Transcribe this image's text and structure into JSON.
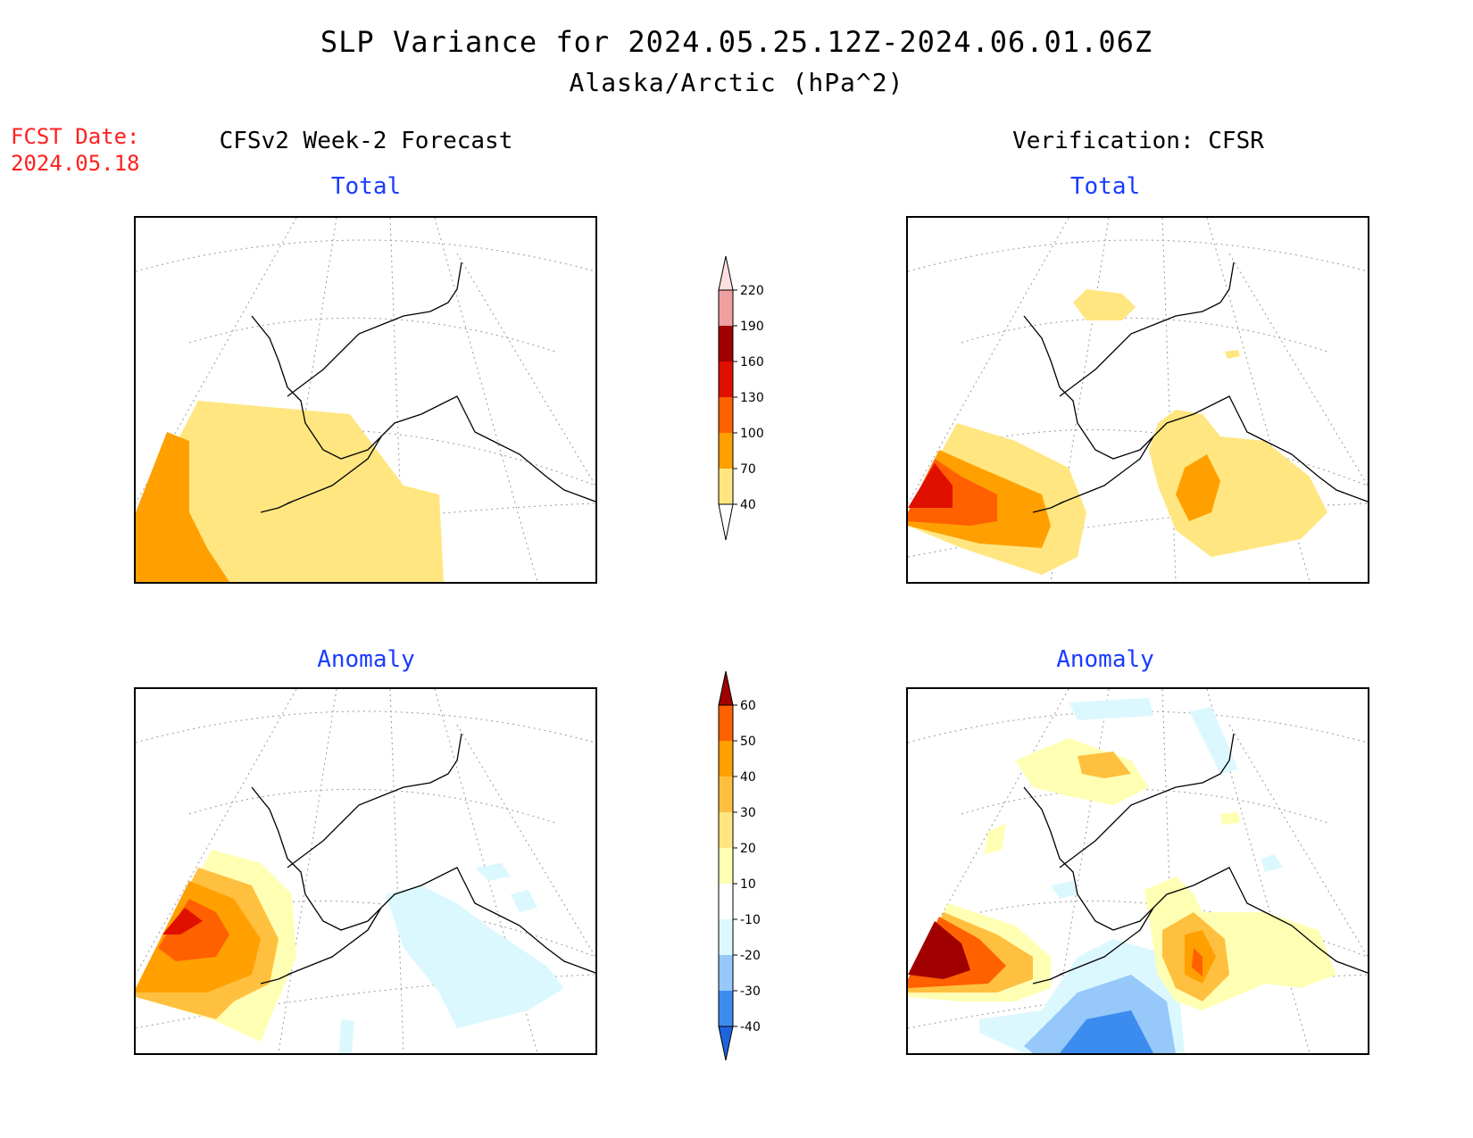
{
  "header": {
    "title": "SLP Variance for 2024.05.25.12Z-2024.06.01.06Z",
    "subtitle": "Alaska/Arctic (hPa^2)",
    "fcst_label": "FCST Date:",
    "fcst_date": "2024.05.18"
  },
  "columns": {
    "left": "CFSv2 Week-2 Forecast",
    "right": "Verification: CFSR"
  },
  "panels": {
    "forecast_total": {
      "title": "Total"
    },
    "verification_total": {
      "title": "Total"
    },
    "forecast_anomaly": {
      "title": "Anomaly"
    },
    "verification_anomaly": {
      "title": "Anomaly"
    }
  },
  "colorbars": {
    "total": {
      "labels": [
        "40",
        "70",
        "100",
        "130",
        "160",
        "190",
        "220"
      ],
      "colors": [
        "#ffe680",
        "#ffa000",
        "#ff6000",
        "#e01000",
        "#a00000",
        "#f0a0a0",
        "#ffe0e0"
      ]
    },
    "anomaly": {
      "labels": [
        "-40",
        "-30",
        "-20",
        "-10",
        "10",
        "20",
        "30",
        "40",
        "50",
        "60"
      ],
      "colors": [
        "#1e64dc",
        "#3c8cf0",
        "#96c8fa",
        "#dcf8ff",
        "#ffffff",
        "#ffffb4",
        "#ffe680",
        "#ffc040",
        "#ffa000",
        "#ff6000",
        "#e01000",
        "#a00000"
      ]
    }
  }
}
